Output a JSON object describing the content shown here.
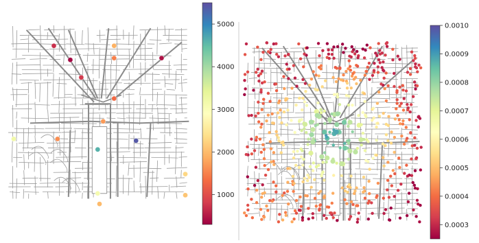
{
  "chart_data": [
    {
      "type": "scatter",
      "title": "",
      "xlabel": "",
      "ylabel": "",
      "colorscale": "Spectral",
      "colorbar": {
        "ticks": [
          1000,
          2000,
          3000,
          4000,
          5000
        ],
        "tick_labels": [
          "1000",
          "2000",
          "3000",
          "4000",
          "5000"
        ],
        "range": [
          300,
          5500
        ]
      },
      "points": [
        {
          "u": 0.25,
          "v": 0.12,
          "value": 700
        },
        {
          "u": 0.58,
          "v": 0.12,
          "value": 1900
        },
        {
          "u": 0.34,
          "v": 0.2,
          "value": 350
        },
        {
          "u": 0.58,
          "v": 0.19,
          "value": 1500
        },
        {
          "u": 0.84,
          "v": 0.19,
          "value": 450
        },
        {
          "u": 0.4,
          "v": 0.3,
          "value": 800
        },
        {
          "u": 0.58,
          "v": 0.42,
          "value": 1300
        },
        {
          "u": 0.52,
          "v": 0.55,
          "value": 1700
        },
        {
          "u": 0.03,
          "v": 0.65,
          "value": 3200
        },
        {
          "u": 0.27,
          "v": 0.65,
          "value": 1600
        },
        {
          "u": 0.7,
          "v": 0.66,
          "value": 5400
        },
        {
          "u": 0.49,
          "v": 0.71,
          "value": 4600
        },
        {
          "u": 0.97,
          "v": 0.85,
          "value": 2300
        },
        {
          "u": 0.49,
          "v": 0.96,
          "value": 3100
        },
        {
          "u": 0.97,
          "v": 0.97,
          "value": 2100
        },
        {
          "u": 0.5,
          "v": 1.02,
          "value": 2000
        }
      ]
    },
    {
      "type": "scatter",
      "title": "",
      "xlabel": "",
      "ylabel": "",
      "colorscale": "Spectral",
      "colorbar": {
        "ticks": [
          0.0003,
          0.0004,
          0.0005,
          0.0006,
          0.0007,
          0.0008,
          0.0009,
          0.001
        ],
        "tick_labels": [
          "0.0003",
          "0.0004",
          "0.0005",
          "0.0006",
          "0.0007",
          "0.0008",
          "0.0009",
          "0.0010"
        ],
        "range": [
          0.00025,
          0.001
        ]
      }
    }
  ]
}
